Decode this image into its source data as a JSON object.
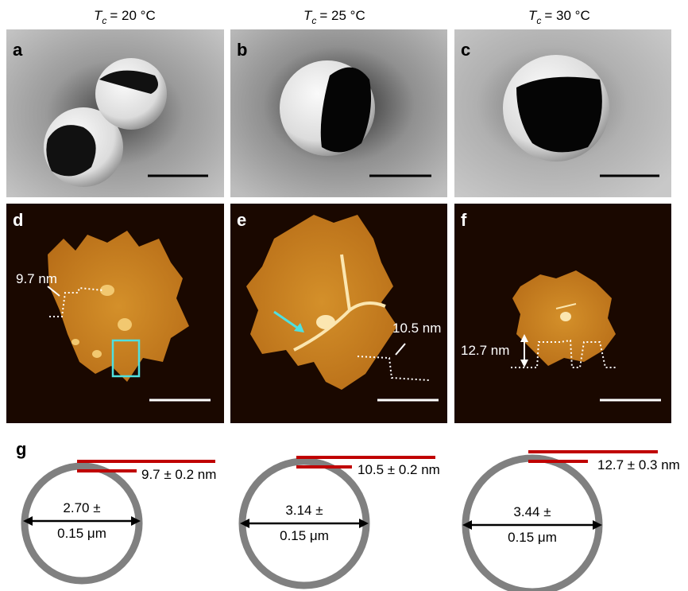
{
  "column_headers": [
    {
      "symbol": "T",
      "subscript": "c",
      "text": "= 20 °C"
    },
    {
      "symbol": "T",
      "subscript": "c",
      "text": "= 25 °C"
    },
    {
      "symbol": "T",
      "subscript": "c",
      "text": "= 30 °C"
    }
  ],
  "panel_labels": [
    "a",
    "b",
    "c",
    "d",
    "e",
    "f",
    "g"
  ],
  "afm_annotations": [
    "9.7 nm",
    "10.5 nm",
    "12.7 nm"
  ],
  "schematic": [
    {
      "thickness": "9.7 ± 0.2 nm",
      "diameter_line1": "2.70 ±",
      "diameter_line2": "0.15 μm"
    },
    {
      "thickness": "10.5 ± 0.2 nm",
      "diameter_line1": "3.14 ±",
      "diameter_line2": "0.15 μm"
    },
    {
      "thickness": "12.7 ± 0.3 nm",
      "diameter_line1": "3.44 ±",
      "diameter_line2": "0.15 μm"
    }
  ]
}
